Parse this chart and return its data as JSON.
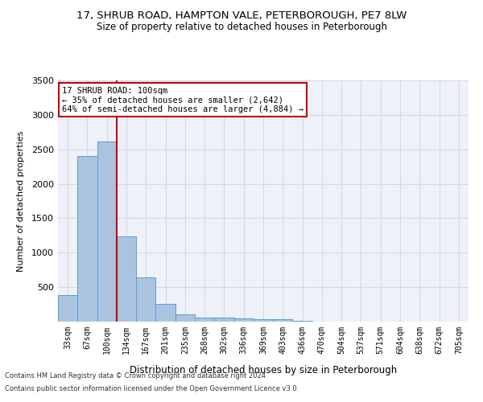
{
  "title_line1": "17, SHRUB ROAD, HAMPTON VALE, PETERBOROUGH, PE7 8LW",
  "title_line2": "Size of property relative to detached houses in Peterborough",
  "xlabel": "Distribution of detached houses by size in Peterborough",
  "ylabel": "Number of detached properties",
  "footnote_line1": "Contains HM Land Registry data © Crown copyright and database right 2024.",
  "footnote_line2": "Contains public sector information licensed under the Open Government Licence v3.0.",
  "bar_labels": [
    "33sqm",
    "67sqm",
    "100sqm",
    "134sqm",
    "167sqm",
    "201sqm",
    "235sqm",
    "268sqm",
    "302sqm",
    "336sqm",
    "369sqm",
    "403sqm",
    "436sqm",
    "470sqm",
    "504sqm",
    "537sqm",
    "571sqm",
    "604sqm",
    "638sqm",
    "672sqm",
    "705sqm"
  ],
  "bar_values": [
    390,
    2400,
    2610,
    1240,
    640,
    260,
    100,
    60,
    60,
    50,
    30,
    30,
    10,
    5,
    3,
    2,
    1,
    1,
    1,
    1,
    1
  ],
  "bar_color": "#aac4e0",
  "bar_edge_color": "#5b9bd5",
  "vline_color": "#c00000",
  "vline_index": 2,
  "annotation_line1": "17 SHRUB ROAD: 100sqm",
  "annotation_line2": "← 35% of detached houses are smaller (2,642)",
  "annotation_line3": "64% of semi-detached houses are larger (4,884) →",
  "annotation_box_color": "#c00000",
  "grid_color": "#d0d8e8",
  "background_color": "#eef2f8",
  "ylim": [
    0,
    3500
  ],
  "yticks": [
    0,
    500,
    1000,
    1500,
    2000,
    2500,
    3000,
    3500
  ]
}
